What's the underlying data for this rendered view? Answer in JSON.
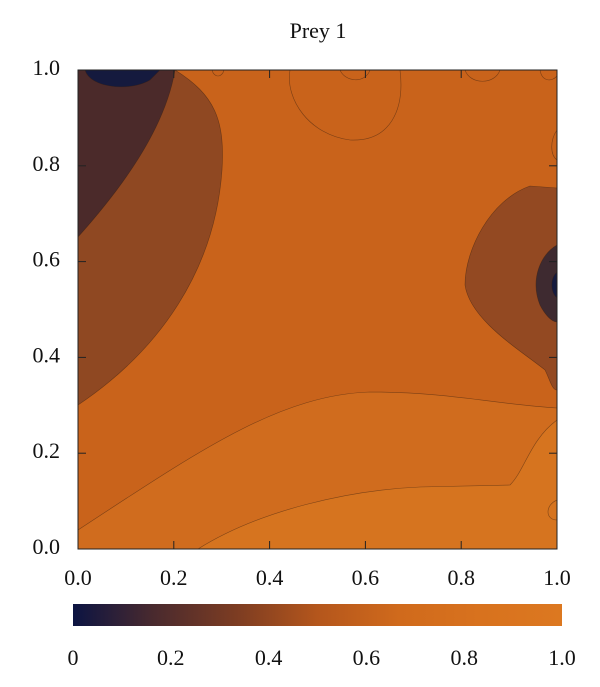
{
  "chart_data": {
    "type": "contour",
    "title": "Prey 1",
    "xlim": [
      0,
      1
    ],
    "ylim": [
      0,
      1
    ],
    "xticks": [
      {
        "value": 0,
        "label": "0.0"
      },
      0.2,
      0.4,
      0.6,
      0.8,
      {
        "value": 1,
        "label": "1.0"
      }
    ],
    "yticks": [
      {
        "value": 0,
        "label": "0.0"
      },
      0.2,
      0.4,
      0.6,
      0.8,
      {
        "value": 1,
        "label": "1.0"
      }
    ],
    "colorbar": {
      "lim": [
        0,
        1
      ],
      "ticks": [
        0,
        0.2,
        0.4,
        0.6,
        0.8,
        {
          "value": 1,
          "label": "1.0"
        }
      ],
      "colors": [
        "#0c1442",
        "#4a2a2e",
        "#7c3c22",
        "#b4561c",
        "#d06a1c",
        "#d8721e",
        "#dc7820"
      ]
    }
  }
}
